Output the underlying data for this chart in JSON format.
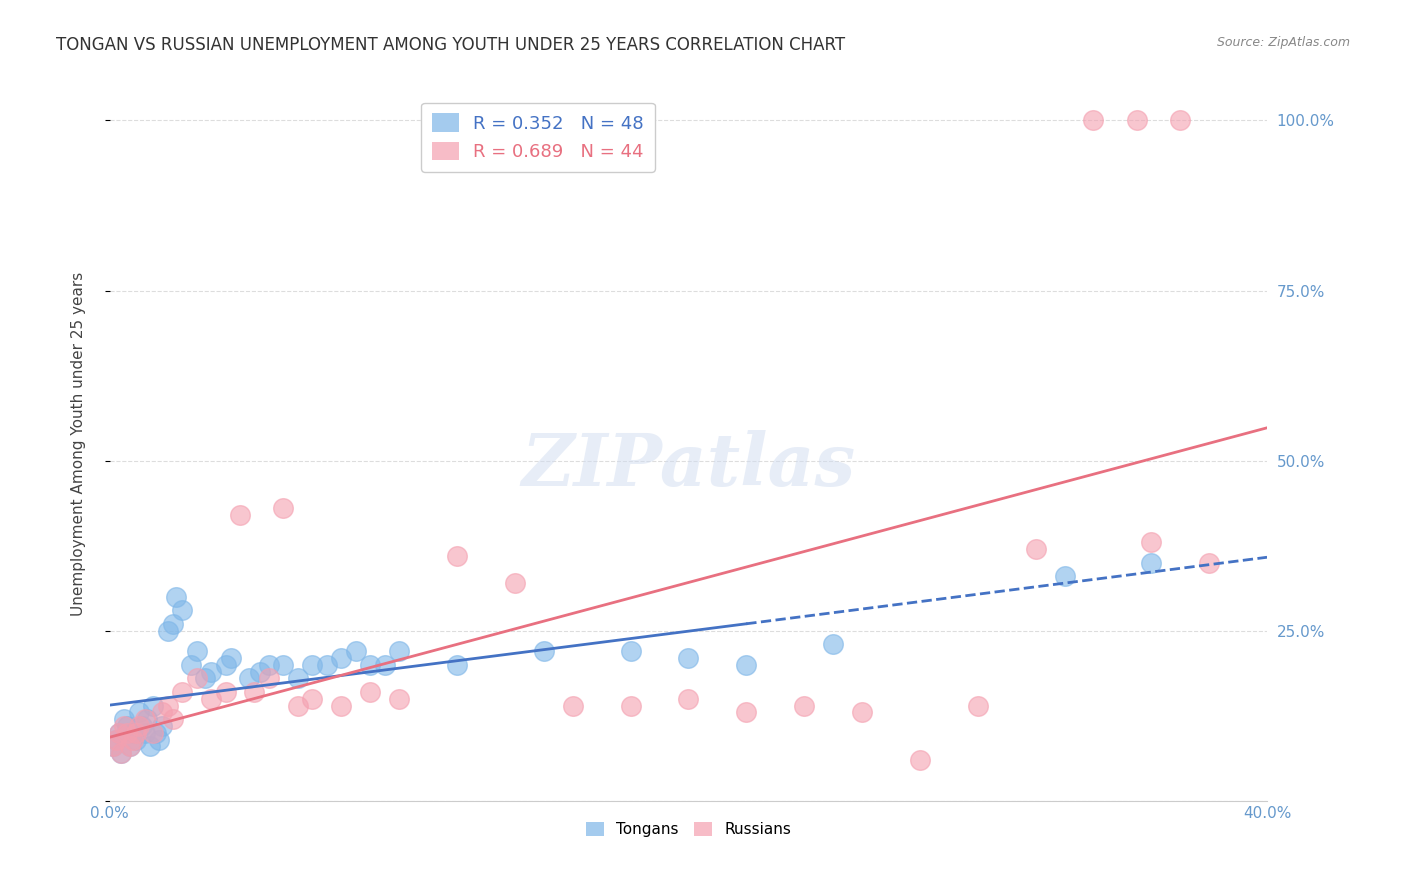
{
  "title": "TONGAN VS RUSSIAN UNEMPLOYMENT AMONG YOUTH UNDER 25 YEARS CORRELATION CHART",
  "source": "Source: ZipAtlas.com",
  "xlabel": "",
  "ylabel": "Unemployment Among Youth under 25 years",
  "xlim": [
    0.0,
    0.4
  ],
  "ylim": [
    0.0,
    1.05
  ],
  "xticks": [
    0.0,
    0.05,
    0.1,
    0.15,
    0.2,
    0.25,
    0.3,
    0.35,
    0.4
  ],
  "xticklabels": [
    "0.0%",
    "",
    "",
    "",
    "",
    "",
    "",
    "",
    "40.0%"
  ],
  "yticks_right": [
    0.0,
    0.25,
    0.5,
    0.75,
    1.0
  ],
  "yticklabels_right": [
    "",
    "25.0%",
    "50.0%",
    "75.0%",
    "100.0%"
  ],
  "legend_entries": [
    {
      "label": "R = 0.352   N = 48",
      "color": "#7EB6E8"
    },
    {
      "label": "R = 0.689   N = 44",
      "color": "#F4A0B0"
    }
  ],
  "series": {
    "tongans": {
      "color": "#7EB6E8",
      "R": 0.352,
      "N": 48,
      "x": [
        0.001,
        0.002,
        0.003,
        0.004,
        0.005,
        0.006,
        0.007,
        0.008,
        0.009,
        0.01,
        0.011,
        0.012,
        0.013,
        0.014,
        0.015,
        0.016,
        0.017,
        0.018,
        0.02,
        0.022,
        0.023,
        0.025,
        0.028,
        0.03,
        0.033,
        0.035,
        0.04,
        0.042,
        0.048,
        0.052,
        0.055,
        0.06,
        0.065,
        0.07,
        0.075,
        0.08,
        0.085,
        0.09,
        0.095,
        0.1,
        0.12,
        0.15,
        0.18,
        0.2,
        0.22,
        0.25,
        0.33,
        0.36
      ],
      "y": [
        0.08,
        0.09,
        0.1,
        0.07,
        0.12,
        0.11,
        0.08,
        0.1,
        0.09,
        0.13,
        0.11,
        0.1,
        0.12,
        0.08,
        0.14,
        0.1,
        0.09,
        0.11,
        0.25,
        0.26,
        0.3,
        0.28,
        0.2,
        0.22,
        0.18,
        0.19,
        0.2,
        0.21,
        0.18,
        0.19,
        0.2,
        0.2,
        0.18,
        0.2,
        0.2,
        0.21,
        0.22,
        0.2,
        0.2,
        0.22,
        0.2,
        0.22,
        0.22,
        0.21,
        0.2,
        0.23,
        0.33,
        0.35
      ]
    },
    "russians": {
      "color": "#F4A0B0",
      "R": 0.689,
      "N": 44,
      "x": [
        0.001,
        0.002,
        0.003,
        0.004,
        0.005,
        0.006,
        0.007,
        0.008,
        0.009,
        0.01,
        0.012,
        0.015,
        0.018,
        0.02,
        0.022,
        0.025,
        0.03,
        0.035,
        0.04,
        0.045,
        0.05,
        0.055,
        0.06,
        0.065,
        0.07,
        0.08,
        0.09,
        0.1,
        0.12,
        0.14,
        0.16,
        0.18,
        0.2,
        0.22,
        0.24,
        0.26,
        0.28,
        0.3,
        0.32,
        0.34,
        0.355,
        0.36,
        0.37,
        0.38
      ],
      "y": [
        0.08,
        0.09,
        0.1,
        0.07,
        0.11,
        0.1,
        0.08,
        0.09,
        0.1,
        0.11,
        0.12,
        0.1,
        0.13,
        0.14,
        0.12,
        0.16,
        0.18,
        0.15,
        0.16,
        0.42,
        0.16,
        0.18,
        0.43,
        0.14,
        0.15,
        0.14,
        0.16,
        0.15,
        0.36,
        0.32,
        0.14,
        0.14,
        0.15,
        0.13,
        0.14,
        0.13,
        0.06,
        0.14,
        0.37,
        1.0,
        1.0,
        0.38,
        1.0,
        0.35
      ]
    }
  },
  "watermark": "ZIPatlas",
  "background_color": "#ffffff",
  "grid_color": "#dddddd",
  "title_color": "#333333",
  "axis_color": "#6699CC",
  "right_axis_color": "#6699CC"
}
